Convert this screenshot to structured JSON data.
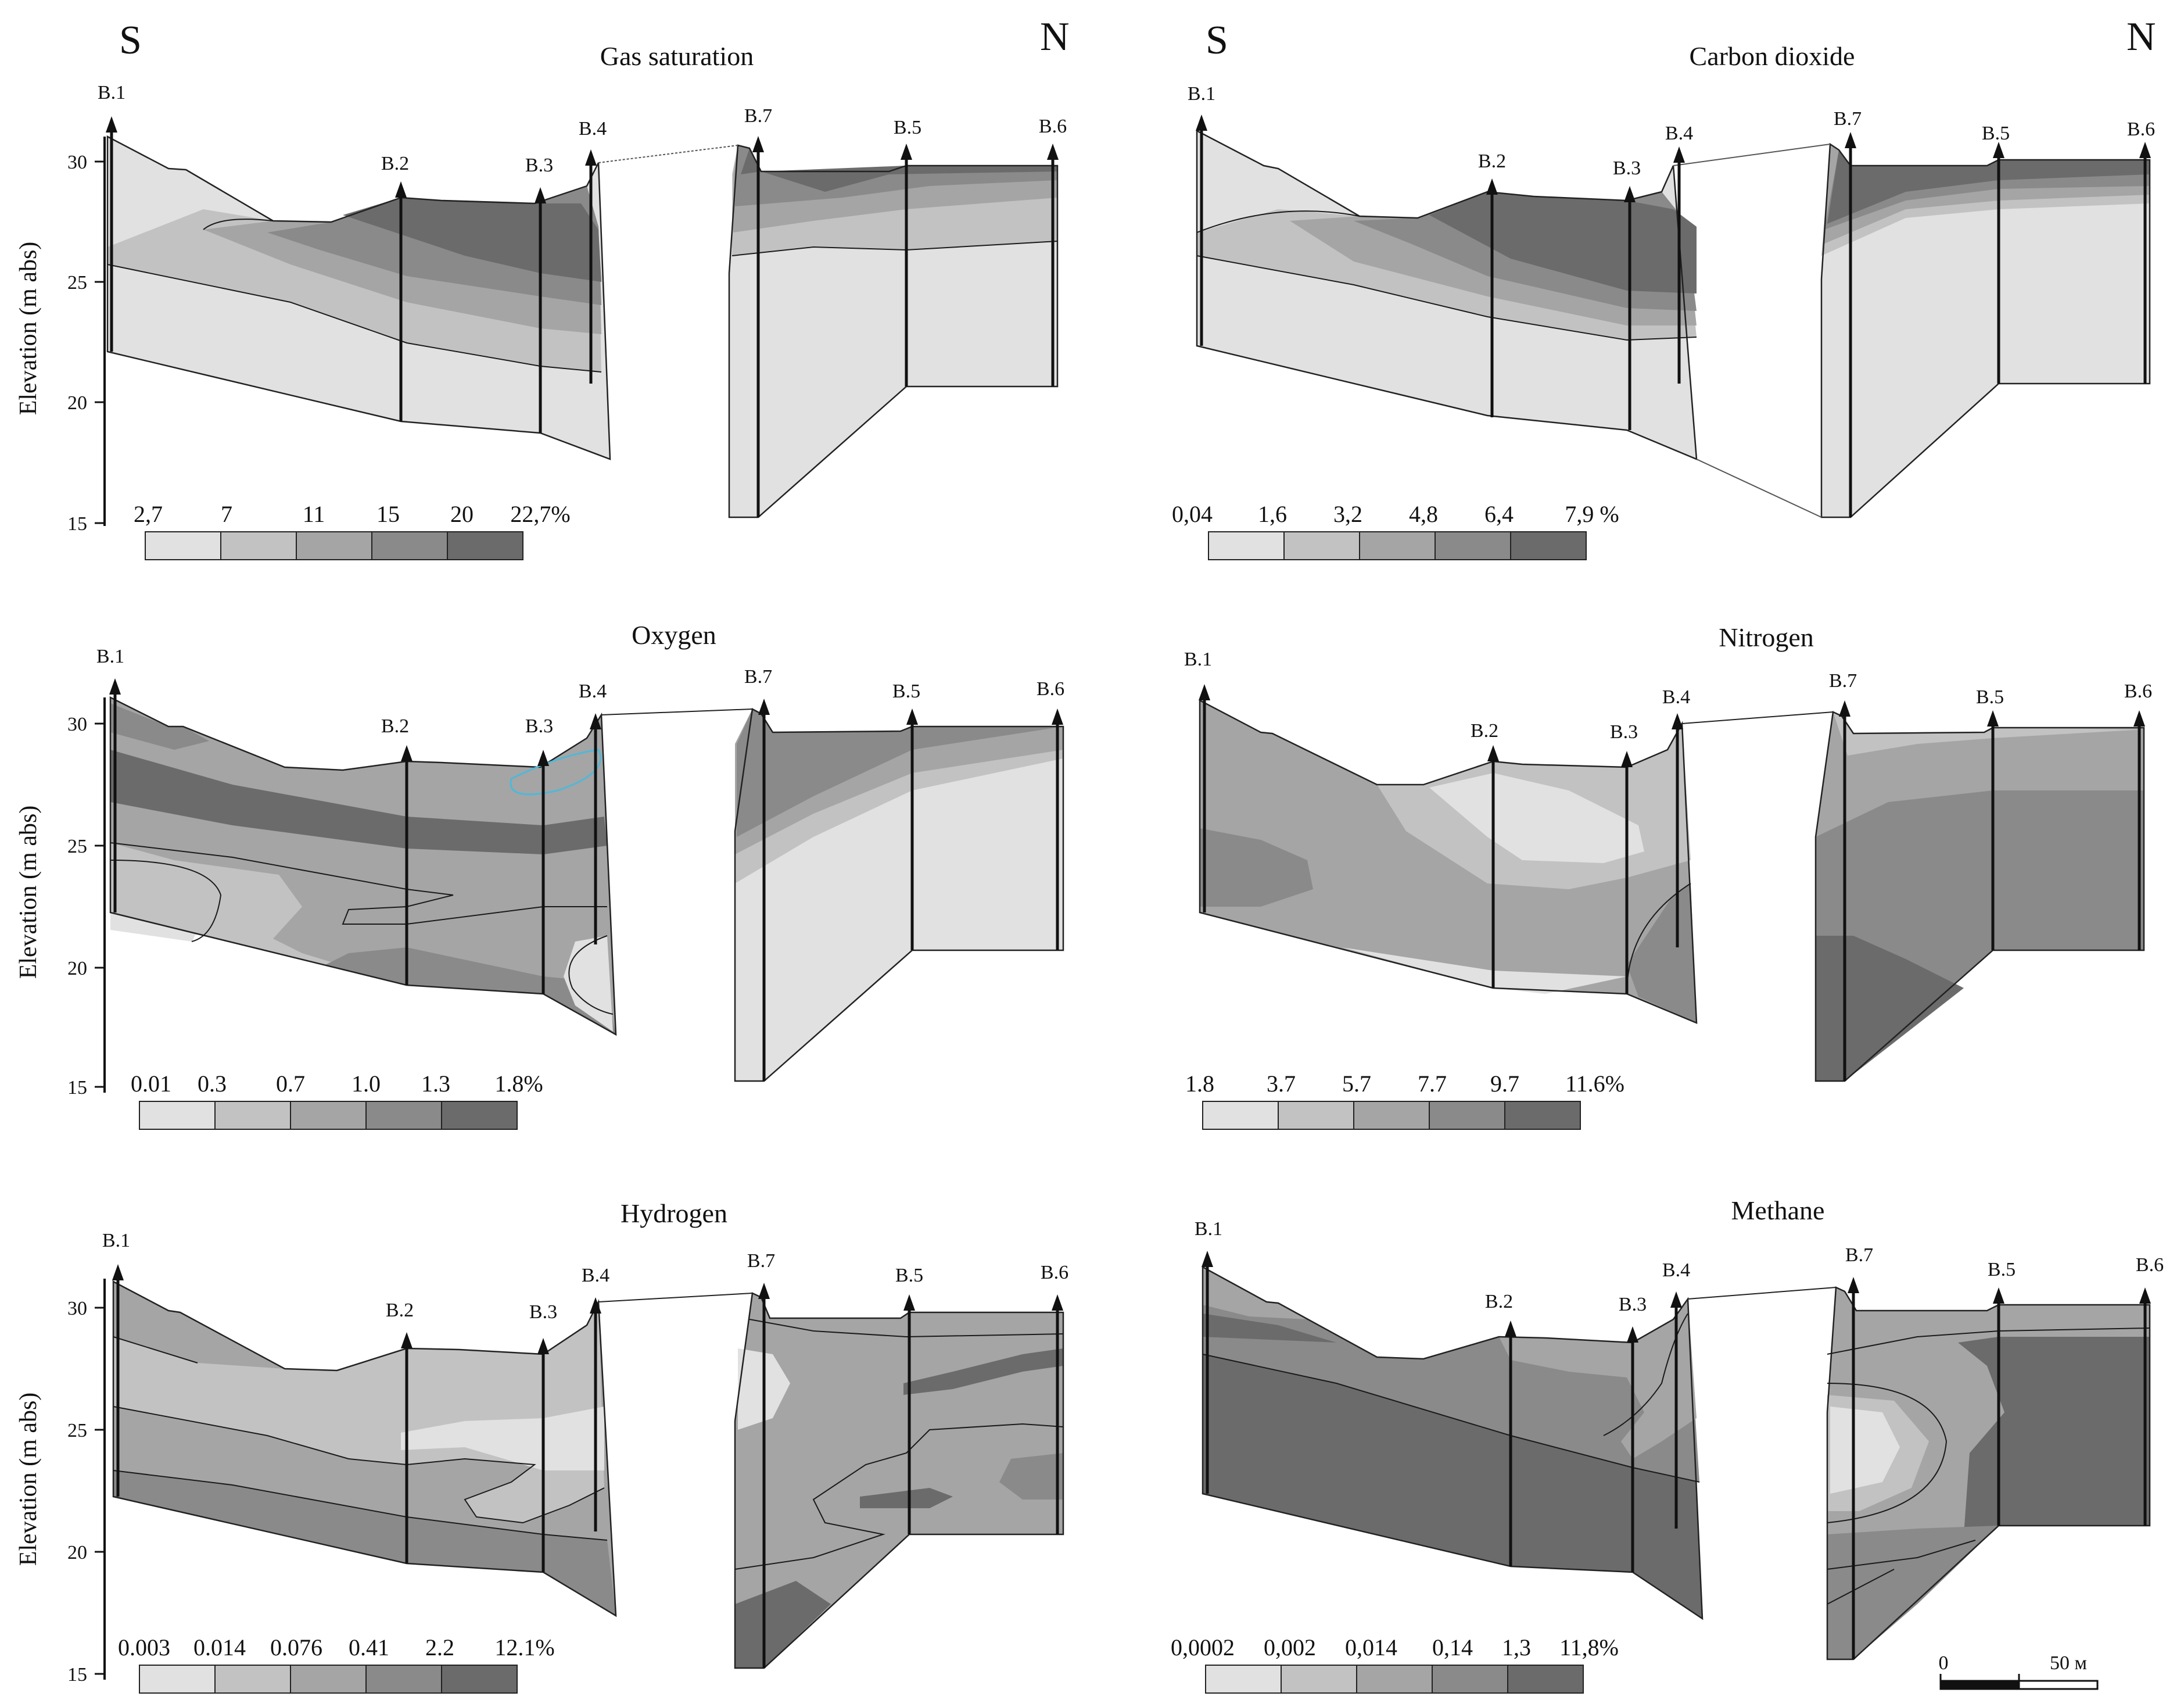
{
  "directions": {
    "south": "S",
    "north": "N"
  },
  "y_axis": {
    "label": "Elevation (m abs)",
    "ticks": [
      "30",
      "25",
      "20",
      "15"
    ]
  },
  "colors": {
    "class1": "#e1e1e1",
    "class2": "#c2c2c2",
    "class3": "#a5a5a5",
    "class4": "#8a8a8a",
    "class5": "#6b6b6b",
    "outline": "#222222"
  },
  "panels": [
    {
      "title": "Gas saturation",
      "wells": [
        "B.1",
        "B.2",
        "B.3",
        "B.4",
        "B.7",
        "B.5",
        "B.6"
      ],
      "legend": [
        "2,7",
        "7",
        "11",
        "15",
        "20",
        "22,7%"
      ]
    },
    {
      "title": "Carbon dioxide",
      "wells": [
        "B.1",
        "B.2",
        "B.3",
        "B.4",
        "B.7",
        "B.5",
        "B.6"
      ],
      "legend": [
        "0,04",
        "1,6",
        "3,2",
        "4,8",
        "6,4",
        "7,9 %"
      ]
    },
    {
      "title": "Oxygen",
      "wells": [
        "B.1",
        "B.2",
        "B.3",
        "B.4",
        "B.7",
        "B.5",
        "B.6"
      ],
      "legend": [
        "0.01",
        "0.3",
        "0.7",
        "1.0",
        "1.3",
        "1.8%"
      ]
    },
    {
      "title": "Nitrogen",
      "wells": [
        "B.1",
        "B.2",
        "B.3",
        "B.4",
        "B.7",
        "B.5",
        "B.6"
      ],
      "legend": [
        "1.8",
        "3.7",
        "5.7",
        "7.7",
        "9.7",
        "11.6%"
      ]
    },
    {
      "title": "Hydrogen",
      "wells": [
        "B.1",
        "B.2",
        "B.3",
        "B.4",
        "B.7",
        "B.5",
        "B.6"
      ],
      "legend": [
        "0.003",
        "0.014",
        "0.076",
        "0.41",
        "2.2",
        "12.1%"
      ]
    },
    {
      "title": "Methane",
      "wells": [
        "B.1",
        "B.2",
        "B.3",
        "B.4",
        "B.7",
        "B.5",
        "B.6"
      ],
      "legend": [
        "0,0002",
        "0,002",
        "0,014",
        "0,14",
        "1,3",
        "11,8%"
      ]
    }
  ],
  "scale_bar": {
    "start": "0",
    "end": "50 м"
  }
}
